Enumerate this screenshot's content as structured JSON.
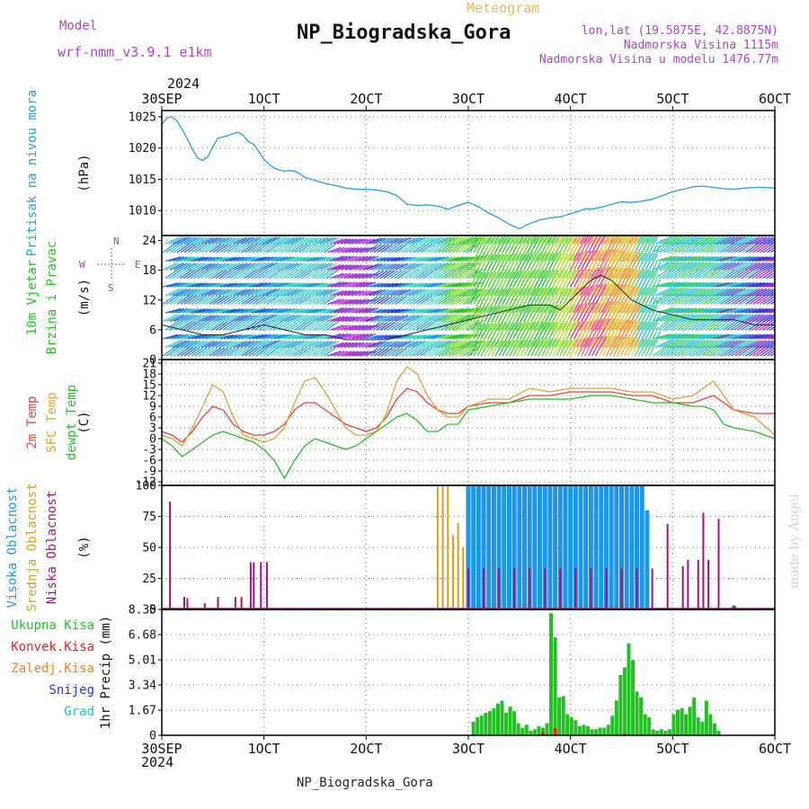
{
  "header": {
    "model_label": "Model",
    "model_name": "wrf-nmm_v3.9.1 e1km",
    "title": "NP_Biogradska_Gora",
    "meteogram_label": "Meteogram",
    "lonlat": "lon,lat (19.5875E, 42.8875N)",
    "altitude": "Nadmorska Visina 1115m",
    "model_altitude": "Nadmorska Visina u modelu 1476.77m",
    "footer_station": "NP_Biogradska_Gora",
    "credit": "made by Angel"
  },
  "colors": {
    "pressure": "#1ea0e6",
    "temp2m": "#e84040",
    "sfc_temp": "#e0a030",
    "dewpt": "#22c022",
    "high_cloud": "#1e96e6",
    "mid_cloud": "#d4a020",
    "low_cloud": "#a0147a",
    "total_precip": "#22c022",
    "conv_precip": "#e82020",
    "frz_precip": "#f08020",
    "snow": "#3030e0",
    "graupel": "#20c0c0",
    "wind_dir_label": "#b040d0",
    "model_text": "#b040d0"
  },
  "x_axis": {
    "year": "2024",
    "ticks": [
      "30SEP",
      "1OCT",
      "2OCT",
      "3OCT",
      "4OCT",
      "5OCT",
      "6OCT"
    ],
    "range_days": [
      0,
      6
    ]
  },
  "chart_data": [
    {
      "type": "line",
      "panel": "pressure",
      "ylabel": "Pritisak na nivou mora",
      "unit": "(hPa)",
      "ylim": [
        1006,
        1026
      ],
      "yticks": [
        "1025",
        "1020",
        "1015",
        "1010"
      ],
      "ytick_values": [
        1025,
        1020,
        1015,
        1010
      ],
      "grid": true,
      "series": [
        {
          "x": [
            0,
            0.05,
            0.1,
            0.15,
            0.2,
            0.25,
            0.3,
            0.35,
            0.4,
            0.45,
            0.5,
            0.55,
            0.6,
            0.65,
            0.7,
            0.75,
            0.8,
            0.85,
            0.9,
            0.95,
            1.0,
            1.05,
            1.1,
            1.15,
            1.2,
            1.25,
            1.3,
            1.35,
            1.4,
            1.5,
            1.6,
            1.7,
            1.8,
            1.9,
            2.0,
            2.1,
            2.2,
            2.3,
            2.4,
            2.5,
            2.6,
            2.7,
            2.8,
            2.9,
            3.0,
            3.1,
            3.2,
            3.3,
            3.4,
            3.5,
            3.6,
            3.7,
            3.8,
            3.9,
            4.0,
            4.1,
            4.15,
            4.2,
            4.3,
            4.4,
            4.5,
            4.6,
            4.7,
            4.8,
            4.9,
            5.0,
            5.1,
            5.2,
            5.3,
            5.4,
            5.5,
            5.6,
            5.7,
            5.8,
            5.9,
            6.0
          ],
          "y": [
            1023.8,
            1024.8,
            1025.0,
            1024.3,
            1023.0,
            1021.5,
            1019.8,
            1018.4,
            1018.0,
            1018.6,
            1020.2,
            1021.6,
            1021.8,
            1022.0,
            1022.3,
            1022.5,
            1022.0,
            1021.0,
            1020.6,
            1019.4,
            1018.2,
            1017.4,
            1016.8,
            1016.5,
            1016.3,
            1016.4,
            1016.3,
            1015.9,
            1015.3,
            1014.8,
            1014.3,
            1014.0,
            1013.6,
            1013.4,
            1013.4,
            1013.3,
            1013.0,
            1012.4,
            1011.0,
            1010.8,
            1010.9,
            1010.7,
            1010.2,
            1010.8,
            1011.3,
            1010.6,
            1009.6,
            1008.8,
            1007.8,
            1007.1,
            1007.9,
            1008.5,
            1008.8,
            1009.0,
            1009.5,
            1010.0,
            1010.3,
            1010.2,
            1010.5,
            1011.0,
            1011.4,
            1011.3,
            1011.5,
            1011.8,
            1012.4,
            1013.0,
            1013.4,
            1013.8,
            1013.9,
            1013.7,
            1013.5,
            1013.4,
            1013.6,
            1013.7,
            1013.7,
            1013.6
          ]
        }
      ]
    },
    {
      "type": "line",
      "panel": "wind",
      "ylabel": "10m Vjetar",
      "ylabel2": "Brzina i Pravac",
      "unit": "(m/s)",
      "ylim": [
        0,
        25
      ],
      "yticks": [
        "24",
        "18",
        "12",
        "6",
        "0"
      ],
      "ytick_values": [
        24,
        18,
        12,
        6,
        0
      ],
      "compass_labels": [
        "N",
        "E",
        "S",
        "W"
      ],
      "grid": true,
      "series": [
        {
          "name": "speed",
          "x": [
            0,
            0.2,
            0.4,
            0.6,
            0.8,
            1.0,
            1.2,
            1.4,
            1.6,
            1.8,
            2.0,
            2.2,
            2.4,
            2.6,
            2.8,
            3.0,
            3.2,
            3.4,
            3.6,
            3.8,
            3.9,
            4.0,
            4.1,
            4.2,
            4.3,
            4.4,
            4.5,
            4.6,
            4.7,
            4.8,
            5.0,
            5.2,
            5.4,
            5.6,
            5.8,
            6.0
          ],
          "y": [
            7,
            6,
            5,
            5,
            6,
            7,
            6,
            5,
            5,
            4,
            4,
            4,
            5,
            6,
            7,
            8,
            9,
            10,
            11,
            11,
            10,
            12,
            14,
            16,
            17,
            16,
            14,
            12,
            11,
            10,
            9,
            8,
            8,
            8,
            7,
            7
          ]
        }
      ]
    },
    {
      "type": "line",
      "panel": "temperature",
      "ylabel": "2m Temp",
      "ylabel2": "SFC Temp",
      "ylabel3": "dewpt Temp",
      "unit": "(C)",
      "ylim": [
        -13,
        22
      ],
      "yticks": [
        "21",
        "18",
        "15",
        "12",
        "9",
        "6",
        "3",
        "0",
        "-3",
        "-6",
        "-9",
        "-12"
      ],
      "ytick_values": [
        21,
        18,
        15,
        12,
        9,
        6,
        3,
        0,
        -3,
        -6,
        -9,
        -12
      ],
      "grid": true,
      "series": [
        {
          "name": "2m Temp",
          "x": [
            0,
            0.1,
            0.2,
            0.3,
            0.4,
            0.5,
            0.6,
            0.7,
            0.8,
            0.9,
            1.0,
            1.1,
            1.2,
            1.3,
            1.4,
            1.5,
            1.6,
            1.7,
            1.8,
            1.9,
            2.0,
            2.1,
            2.2,
            2.3,
            2.4,
            2.5,
            2.6,
            2.7,
            2.8,
            2.9,
            3.0,
            3.2,
            3.4,
            3.6,
            3.8,
            4.0,
            4.2,
            4.4,
            4.6,
            4.8,
            5.0,
            5.2,
            5.3,
            5.4,
            5.5,
            5.6,
            5.8,
            6.0
          ],
          "y": [
            2,
            1,
            -1,
            2,
            6,
            9,
            8,
            4,
            2,
            1,
            1,
            2,
            4,
            8,
            10,
            10,
            8,
            6,
            4,
            3,
            2,
            3,
            6,
            11,
            14,
            13,
            10,
            8,
            7,
            7,
            9,
            10,
            10,
            12,
            12,
            13,
            13,
            13,
            12,
            12,
            10,
            10,
            11,
            12,
            10,
            8,
            7,
            7
          ]
        },
        {
          "name": "SFC Temp",
          "x": [
            0,
            0.1,
            0.2,
            0.3,
            0.4,
            0.5,
            0.6,
            0.7,
            0.8,
            0.9,
            1.0,
            1.1,
            1.2,
            1.3,
            1.4,
            1.5,
            1.6,
            1.7,
            1.8,
            1.9,
            2.0,
            2.1,
            2.2,
            2.3,
            2.4,
            2.5,
            2.6,
            2.7,
            2.8,
            2.9,
            3.0,
            3.2,
            3.4,
            3.6,
            3.8,
            4.0,
            4.2,
            4.4,
            4.6,
            4.8,
            5.0,
            5.2,
            5.3,
            5.4,
            5.5,
            5.6,
            5.8,
            6.0
          ],
          "y": [
            1,
            0,
            -2,
            3,
            9,
            15,
            13,
            6,
            1,
            0,
            -1,
            0,
            3,
            10,
            16,
            17,
            13,
            8,
            3,
            1,
            1,
            2,
            7,
            16,
            20,
            18,
            12,
            8,
            6,
            6,
            9,
            11,
            11,
            14,
            13,
            14,
            14,
            14,
            13,
            13,
            11,
            12,
            14,
            16,
            12,
            8,
            6,
            1
          ]
        },
        {
          "name": "dewpt Temp",
          "x": [
            0,
            0.1,
            0.2,
            0.3,
            0.4,
            0.5,
            0.6,
            0.7,
            0.8,
            0.9,
            1.0,
            1.1,
            1.2,
            1.3,
            1.4,
            1.5,
            1.6,
            1.7,
            1.8,
            1.9,
            2.0,
            2.1,
            2.2,
            2.3,
            2.4,
            2.5,
            2.6,
            2.7,
            2.8,
            2.9,
            3.0,
            3.2,
            3.4,
            3.6,
            3.8,
            4.0,
            4.2,
            4.4,
            4.6,
            4.8,
            5.0,
            5.2,
            5.3,
            5.4,
            5.5,
            5.6,
            5.8,
            6.0
          ],
          "y": [
            0,
            -2,
            -5,
            -3,
            -1,
            1,
            2,
            1,
            0,
            -1,
            -3,
            -6,
            -11,
            -6,
            -2,
            0,
            -1,
            -2,
            -3,
            -2,
            0,
            2,
            4,
            6,
            7,
            5,
            2,
            2,
            4,
            4,
            8,
            9,
            10,
            11,
            11,
            11,
            12,
            12,
            11,
            10,
            10,
            9,
            9,
            8,
            4,
            3,
            2,
            0
          ]
        }
      ]
    },
    {
      "type": "bar",
      "panel": "cloud",
      "ylabel": "Visoka Oblacnost",
      "ylabel2": "Srednja Oblacnost",
      "ylabel3": "Niska Oblacnost",
      "unit": "(%)",
      "ylim": [
        0,
        100
      ],
      "yticks": [
        "100",
        "75",
        "50",
        "25",
        "0"
      ],
      "ytick_values": [
        100,
        75,
        50,
        25,
        0
      ],
      "grid": true,
      "series": [
        {
          "name": "Visoka Oblacnost",
          "x": [
            3.0,
            3.05,
            3.1,
            3.15,
            3.2,
            3.25,
            3.3,
            3.35,
            3.4,
            3.45,
            3.5,
            3.55,
            3.6,
            3.65,
            3.7,
            3.75,
            3.8,
            3.85,
            3.9,
            3.95,
            4.0,
            4.05,
            4.1,
            4.15,
            4.2,
            4.25,
            4.3,
            4.35,
            4.4,
            4.45,
            4.5,
            4.55,
            4.6,
            4.65,
            4.7,
            4.75,
            5.6
          ],
          "values": [
            100,
            100,
            100,
            100,
            100,
            100,
            100,
            100,
            100,
            100,
            100,
            100,
            100,
            100,
            100,
            100,
            100,
            100,
            100,
            100,
            100,
            100,
            100,
            100,
            100,
            100,
            100,
            100,
            100,
            100,
            100,
            100,
            100,
            100,
            100,
            80,
            3
          ]
        },
        {
          "name": "Srednja Oblacnost",
          "x": [
            2.7,
            2.75,
            2.8,
            2.85,
            2.9,
            2.95,
            3.0,
            3.05,
            3.1,
            3.15,
            3.2,
            3.25,
            3.3,
            3.35,
            3.4,
            3.45,
            3.5,
            3.55,
            3.6,
            3.65,
            3.7,
            3.75,
            3.8,
            3.85,
            3.9,
            3.95,
            4.0,
            4.05,
            4.1,
            4.15,
            4.2,
            4.25,
            4.3,
            4.35,
            4.4,
            4.45,
            4.5,
            4.55,
            4.6,
            4.65,
            4.7
          ],
          "values": [
            100,
            100,
            100,
            60,
            70,
            50,
            100,
            100,
            100,
            100,
            100,
            100,
            100,
            100,
            100,
            100,
            100,
            100,
            100,
            100,
            100,
            100,
            100,
            100,
            100,
            100,
            100,
            100,
            100,
            100,
            100,
            100,
            100,
            100,
            100,
            100,
            100,
            100,
            100,
            100,
            100
          ]
        },
        {
          "name": "Niska Oblacnost",
          "x": [
            0.08,
            0.22,
            0.25,
            0.42,
            0.55,
            0.72,
            0.78,
            0.87,
            0.9,
            0.97,
            1.03,
            3.0,
            3.15,
            3.3,
            3.45,
            3.6,
            3.75,
            3.9,
            4.05,
            4.2,
            4.35,
            4.5,
            4.65,
            4.8,
            4.95,
            5.1,
            5.15,
            5.25,
            5.3,
            5.35,
            5.45,
            5.6
          ],
          "values": [
            87,
            10,
            9,
            5,
            10,
            10,
            10,
            38,
            38,
            38,
            38,
            33,
            33,
            33,
            33,
            33,
            33,
            33,
            33,
            33,
            33,
            33,
            33,
            33,
            69,
            35,
            40,
            40,
            78,
            40,
            73,
            3
          ]
        }
      ]
    },
    {
      "type": "bar",
      "panel": "precip",
      "ylabel": "1hr Precip (mm)",
      "ylim": [
        0,
        8.35
      ],
      "yticks": [
        "8.35",
        "6.68",
        "5.01",
        "3.34",
        "1.67",
        "0"
      ],
      "ytick_values": [
        8.35,
        6.68,
        5.01,
        3.34,
        1.67,
        0
      ],
      "legend": [
        "Ukupna Kisa",
        "Konvek.Kisa",
        "Zaledj.Kisa",
        "Snijeg",
        "Grad"
      ],
      "grid": true,
      "series": [
        {
          "name": "Ukupna Kisa",
          "x": [
            3.05,
            3.09,
            3.13,
            3.17,
            3.21,
            3.25,
            3.29,
            3.33,
            3.37,
            3.41,
            3.45,
            3.49,
            3.53,
            3.57,
            3.61,
            3.65,
            3.69,
            3.73,
            3.77,
            3.81,
            3.85,
            3.89,
            3.93,
            3.97,
            4.01,
            4.05,
            4.09,
            4.13,
            4.17,
            4.21,
            4.25,
            4.29,
            4.33,
            4.37,
            4.41,
            4.45,
            4.49,
            4.53,
            4.57,
            4.61,
            4.65,
            4.69,
            4.73,
            4.77,
            4.81,
            4.85,
            4.89,
            4.93,
            4.97,
            5.01,
            5.05,
            5.09,
            5.13,
            5.17,
            5.21,
            5.25,
            5.29,
            5.33,
            5.37,
            5.41,
            5.45
          ],
          "values": [
            0.9,
            1.2,
            1.3,
            1.5,
            1.6,
            1.8,
            2.1,
            2.3,
            1.5,
            1.9,
            1.6,
            0.8,
            0.5,
            0.7,
            0.3,
            0.4,
            0.6,
            0.5,
            0.8,
            8.1,
            6.5,
            2.5,
            2.6,
            1.4,
            1.2,
            1.0,
            0.6,
            0.7,
            0.6,
            0.4,
            0.4,
            0.5,
            0.5,
            0.7,
            1.3,
            2.3,
            4.0,
            4.5,
            6.1,
            5.0,
            2.9,
            2.5,
            1.4,
            1.2,
            0.4,
            0.3,
            0.4,
            0.3,
            0.4,
            1.4,
            1.7,
            1.8,
            1.4,
            1.9,
            2.5,
            1.2,
            0.9,
            2.3,
            1.4,
            0.8,
            0.3
          ]
        },
        {
          "name": "Konvek.Kisa",
          "x": [
            3.73,
            3.85,
            4.53
          ],
          "values": [
            0.2,
            0.5,
            0.1
          ]
        }
      ]
    }
  ]
}
